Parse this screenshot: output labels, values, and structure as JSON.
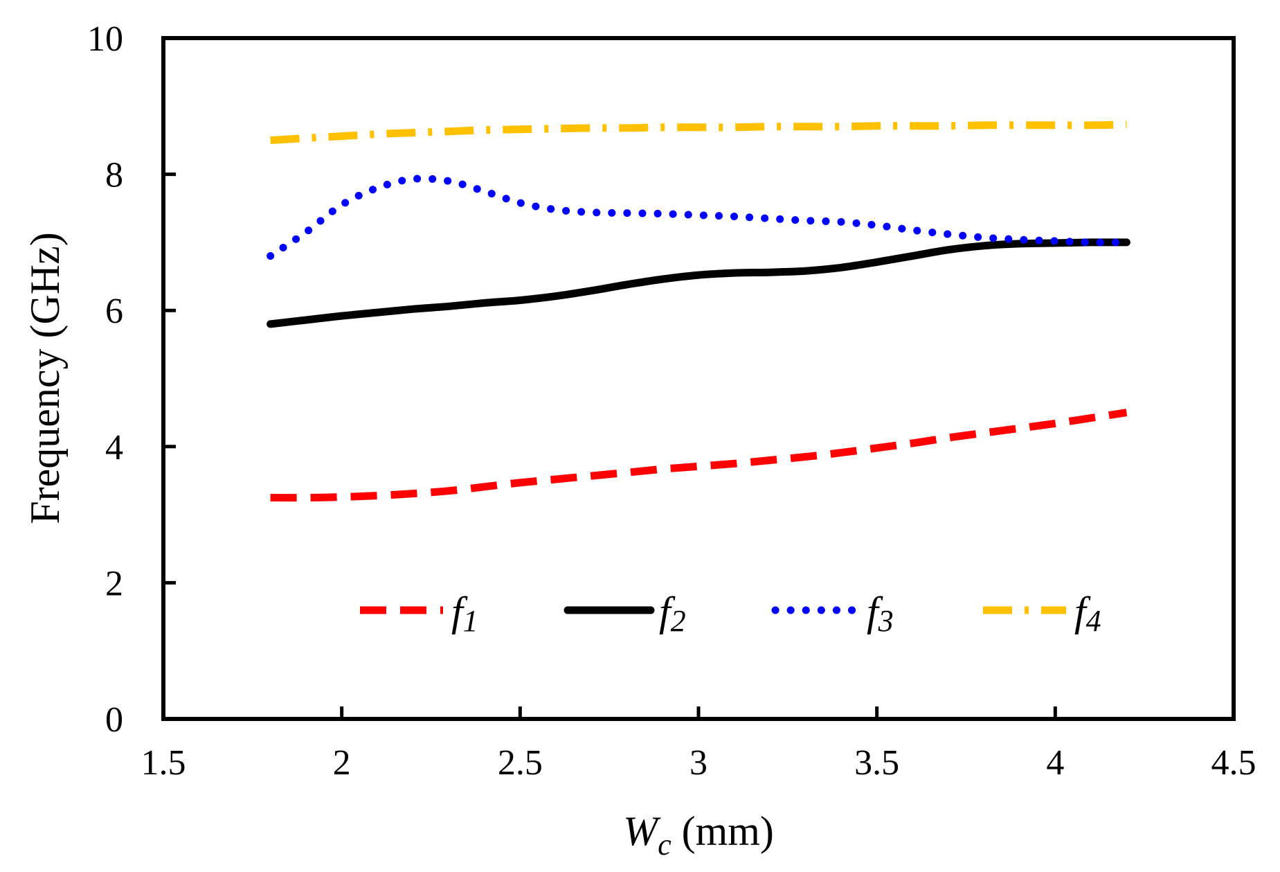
{
  "chart_data": {
    "type": "line",
    "title": "",
    "xlabel": "W_c (mm)",
    "xlabel_main": "W",
    "xlabel_sub": "c",
    "xlabel_unit": " (mm)",
    "ylabel": "Frequency (GHz)",
    "xlim": [
      1.5,
      4.5
    ],
    "ylim": [
      0,
      10
    ],
    "xticks": [
      1.5,
      2,
      2.5,
      3,
      3.5,
      4,
      4.5
    ],
    "yticks": [
      0,
      2,
      4,
      6,
      8,
      10
    ],
    "xtick_labels": [
      "1.5",
      "2",
      "2.5",
      "3",
      "3.5",
      "4",
      "4.5"
    ],
    "ytick_labels": [
      "0",
      "2",
      "4",
      "6",
      "8",
      "10"
    ],
    "grid": false,
    "legend_position": "lower-center inside",
    "x": [
      1.8,
      1.9,
      2.0,
      2.1,
      2.2,
      2.3,
      2.4,
      2.5,
      2.6,
      2.7,
      2.8,
      2.9,
      3.0,
      3.1,
      3.2,
      3.3,
      3.4,
      3.5,
      3.6,
      3.7,
      3.8,
      3.9,
      4.0,
      4.1,
      4.2
    ],
    "series": [
      {
        "name": "f1",
        "label": "f",
        "sub": "1",
        "color": "#FF0000",
        "style": "dashed",
        "values": [
          3.25,
          3.25,
          3.26,
          3.28,
          3.31,
          3.35,
          3.41,
          3.47,
          3.52,
          3.57,
          3.62,
          3.67,
          3.71,
          3.75,
          3.8,
          3.85,
          3.91,
          3.98,
          4.05,
          4.13,
          4.2,
          4.27,
          4.34,
          4.42,
          4.5
        ]
      },
      {
        "name": "f2",
        "label": "f",
        "sub": "2",
        "color": "#000000",
        "style": "solid",
        "values": [
          5.8,
          5.86,
          5.92,
          5.97,
          6.02,
          6.06,
          6.11,
          6.15,
          6.21,
          6.29,
          6.38,
          6.46,
          6.52,
          6.55,
          6.56,
          6.58,
          6.63,
          6.71,
          6.8,
          6.89,
          6.95,
          6.98,
          6.99,
          7.0,
          7.0
        ]
      },
      {
        "name": "f3",
        "label": "f",
        "sub": "3",
        "color": "#0000FF",
        "style": "dotted",
        "values": [
          6.8,
          7.15,
          7.55,
          7.8,
          7.93,
          7.9,
          7.75,
          7.58,
          7.48,
          7.44,
          7.43,
          7.42,
          7.4,
          7.38,
          7.35,
          7.32,
          7.3,
          7.25,
          7.18,
          7.12,
          7.07,
          7.04,
          7.02,
          7.0,
          7.0
        ]
      },
      {
        "name": "f4",
        "label": "f",
        "sub": "4",
        "color": "#FFC000",
        "style": "dash-dot",
        "values": [
          8.5,
          8.53,
          8.56,
          8.59,
          8.61,
          8.63,
          8.65,
          8.66,
          8.67,
          8.68,
          8.68,
          8.69,
          8.69,
          8.69,
          8.7,
          8.7,
          8.7,
          8.71,
          8.71,
          8.71,
          8.72,
          8.72,
          8.72,
          8.72,
          8.73
        ]
      }
    ]
  }
}
